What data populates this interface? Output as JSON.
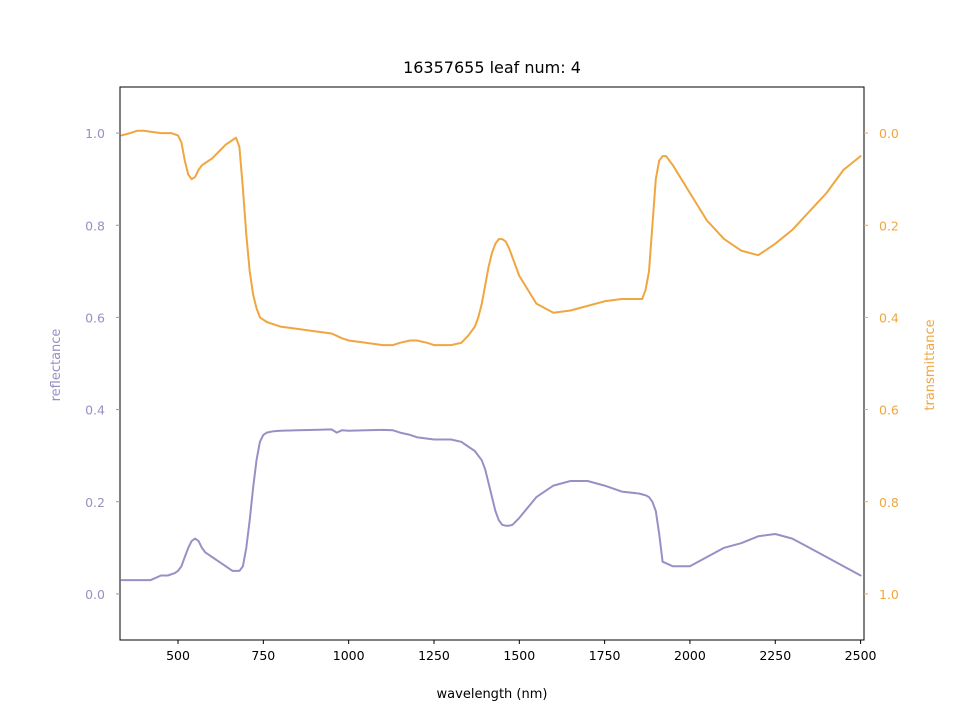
{
  "chart_data": {
    "type": "line",
    "title": "16357655 leaf num: 4",
    "xlabel": "wavelength (nm)",
    "ylabel_left": "reflectance",
    "ylabel_right": "transmittance",
    "xlim": [
      330,
      2510
    ],
    "ylim_left": [
      -0.1,
      1.1
    ],
    "ylim_right": [
      1.1,
      -0.1
    ],
    "right_axis_inverted": true,
    "grid": false,
    "legend": "none",
    "x_ticks": [
      500,
      750,
      1000,
      1250,
      1500,
      1750,
      2000,
      2250,
      2500
    ],
    "x_tick_labels": [
      "500",
      "750",
      "1000",
      "1250",
      "1500",
      "1750",
      "2000",
      "2250",
      "2500"
    ],
    "y_left_ticks": [
      0.0,
      0.2,
      0.4,
      0.6,
      0.8,
      1.0
    ],
    "y_left_tick_labels": [
      "0.0",
      "0.2",
      "0.4",
      "0.6",
      "0.8",
      "1.0"
    ],
    "y_right_ticks": [
      0.0,
      0.2,
      0.4,
      0.6,
      0.8,
      1.0
    ],
    "y_right_tick_labels": [
      "0.0",
      "0.2",
      "0.4",
      "0.6",
      "0.8",
      "1.0"
    ],
    "colors": {
      "reflectance": "#9890c5",
      "transmittance": "#f0a640"
    },
    "series": [
      {
        "axis": "left",
        "x": [
          335,
          360,
          380,
          400,
          420,
          450,
          470,
          490,
          500,
          510,
          520,
          530,
          540,
          550,
          560,
          570,
          580,
          590,
          600,
          620,
          640,
          660,
          680,
          690,
          700,
          710,
          720,
          730,
          740,
          750,
          760,
          780,
          800,
          850,
          900,
          950,
          965,
          980,
          1000,
          1050,
          1100,
          1130,
          1150,
          1180,
          1200,
          1250,
          1300,
          1330,
          1350,
          1370,
          1380,
          1390,
          1400,
          1410,
          1420,
          1430,
          1440,
          1450,
          1460,
          1470,
          1480,
          1500,
          1550,
          1600,
          1650,
          1700,
          1750,
          1800,
          1850,
          1860,
          1870,
          1880,
          1890,
          1900,
          1910,
          1920,
          1950,
          2000,
          2050,
          2100,
          2150,
          2200,
          2250,
          2300,
          2350,
          2400,
          2450,
          2500
        ],
        "y": [
          0.03,
          0.03,
          0.03,
          0.03,
          0.03,
          0.04,
          0.04,
          0.045,
          0.05,
          0.06,
          0.08,
          0.1,
          0.115,
          0.12,
          0.115,
          0.1,
          0.09,
          0.085,
          0.08,
          0.07,
          0.06,
          0.05,
          0.05,
          0.06,
          0.1,
          0.16,
          0.23,
          0.29,
          0.33,
          0.345,
          0.35,
          0.353,
          0.354,
          0.355,
          0.356,
          0.357,
          0.35,
          0.355,
          0.354,
          0.355,
          0.356,
          0.355,
          0.35,
          0.345,
          0.34,
          0.335,
          0.335,
          0.33,
          0.32,
          0.31,
          0.3,
          0.29,
          0.27,
          0.24,
          0.21,
          0.18,
          0.16,
          0.15,
          0.148,
          0.148,
          0.15,
          0.165,
          0.21,
          0.235,
          0.245,
          0.245,
          0.235,
          0.222,
          0.218,
          0.216,
          0.214,
          0.21,
          0.2,
          0.18,
          0.13,
          0.07,
          0.06,
          0.06,
          0.08,
          0.1,
          0.11,
          0.125,
          0.13,
          0.12,
          0.1,
          0.08,
          0.06,
          0.04
        ]
      },
      {
        "axis": "right",
        "x": [
          335,
          360,
          380,
          400,
          420,
          450,
          480,
          500,
          510,
          520,
          530,
          540,
          550,
          560,
          570,
          580,
          590,
          600,
          620,
          640,
          660,
          670,
          680,
          690,
          700,
          710,
          720,
          730,
          740,
          750,
          760,
          780,
          800,
          850,
          900,
          950,
          965,
          980,
          1000,
          1050,
          1100,
          1130,
          1150,
          1180,
          1200,
          1230,
          1250,
          1300,
          1330,
          1350,
          1370,
          1380,
          1390,
          1400,
          1410,
          1420,
          1430,
          1440,
          1450,
          1460,
          1470,
          1480,
          1500,
          1550,
          1600,
          1650,
          1700,
          1750,
          1800,
          1850,
          1860,
          1870,
          1880,
          1890,
          1900,
          1910,
          1920,
          1930,
          1950,
          2000,
          2050,
          2100,
          2150,
          2200,
          2250,
          2300,
          2350,
          2400,
          2450,
          2500
        ],
        "y": [
          0.005,
          0.0,
          -0.005,
          -0.005,
          -0.003,
          0.0,
          0.0,
          0.005,
          0.02,
          0.06,
          0.09,
          0.1,
          0.095,
          0.08,
          0.07,
          0.065,
          0.06,
          0.055,
          0.04,
          0.025,
          0.015,
          0.01,
          0.03,
          0.12,
          0.22,
          0.3,
          0.35,
          0.38,
          0.4,
          0.405,
          0.41,
          0.415,
          0.42,
          0.425,
          0.43,
          0.435,
          0.44,
          0.445,
          0.45,
          0.455,
          0.46,
          0.46,
          0.455,
          0.45,
          0.45,
          0.455,
          0.46,
          0.46,
          0.455,
          0.44,
          0.42,
          0.4,
          0.37,
          0.33,
          0.29,
          0.26,
          0.24,
          0.23,
          0.23,
          0.235,
          0.25,
          0.27,
          0.31,
          0.37,
          0.39,
          0.385,
          0.375,
          0.365,
          0.36,
          0.36,
          0.36,
          0.34,
          0.3,
          0.2,
          0.1,
          0.06,
          0.05,
          0.05,
          0.07,
          0.13,
          0.19,
          0.23,
          0.255,
          0.265,
          0.24,
          0.21,
          0.17,
          0.13,
          0.08,
          0.05
        ]
      }
    ]
  }
}
